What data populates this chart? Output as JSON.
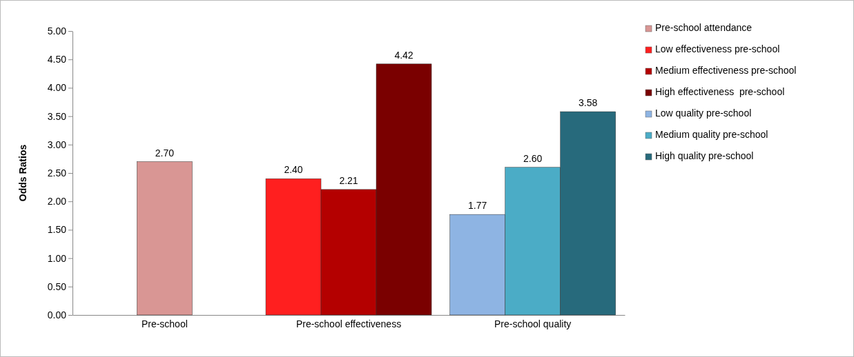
{
  "chart_data": {
    "type": "bar",
    "ylabel": "Odds Ratios",
    "categories": [
      "Pre-school",
      "Pre-school effectiveness",
      "Pre-school quality"
    ],
    "series": [
      {
        "name": "Pre-school attendance",
        "color": "#d99694",
        "values": [
          2.7,
          null,
          null
        ],
        "value_labels": [
          "2.70",
          null,
          null
        ]
      },
      {
        "name": "Low effectiveness pre-school",
        "color": "#ff1f1f",
        "values": [
          null,
          2.4,
          null
        ],
        "value_labels": [
          null,
          "2.40",
          null
        ]
      },
      {
        "name": "Medium effectiveness pre-school",
        "color": "#b40000",
        "values": [
          null,
          2.21,
          null
        ],
        "value_labels": [
          null,
          "2.21",
          null
        ]
      },
      {
        "name": "High effectiveness  pre-school",
        "color": "#7a0000",
        "values": [
          null,
          4.42,
          null
        ],
        "value_labels": [
          null,
          "4.42",
          null
        ]
      },
      {
        "name": "Low quality pre-school",
        "color": "#8eb4e3",
        "values": [
          null,
          null,
          1.77
        ],
        "value_labels": [
          null,
          null,
          "1.77"
        ]
      },
      {
        "name": "Medium quality pre-school",
        "color": "#4bacc6",
        "values": [
          null,
          null,
          2.6
        ],
        "value_labels": [
          null,
          null,
          "2.60"
        ]
      },
      {
        "name": "High quality pre-school",
        "color": "#276a7c",
        "values": [
          null,
          null,
          3.58
        ],
        "value_labels": [
          null,
          null,
          "3.58"
        ]
      }
    ],
    "ylim": [
      0,
      5
    ],
    "yticks": [
      {
        "value": 0,
        "label": "0.00"
      },
      {
        "value": 0.5,
        "label": "0.50"
      },
      {
        "value": 1,
        "label": "1.00"
      },
      {
        "value": 1.5,
        "label": "1.50"
      },
      {
        "value": 2,
        "label": "2.00"
      },
      {
        "value": 2.5,
        "label": "2.50"
      },
      {
        "value": 3,
        "label": "3.00"
      },
      {
        "value": 3.5,
        "label": "3.50"
      },
      {
        "value": 4,
        "label": "4.00"
      },
      {
        "value": 4.5,
        "label": "4.50"
      },
      {
        "value": 5,
        "label": "5.00"
      }
    ],
    "grid": false,
    "legend": "right"
  }
}
